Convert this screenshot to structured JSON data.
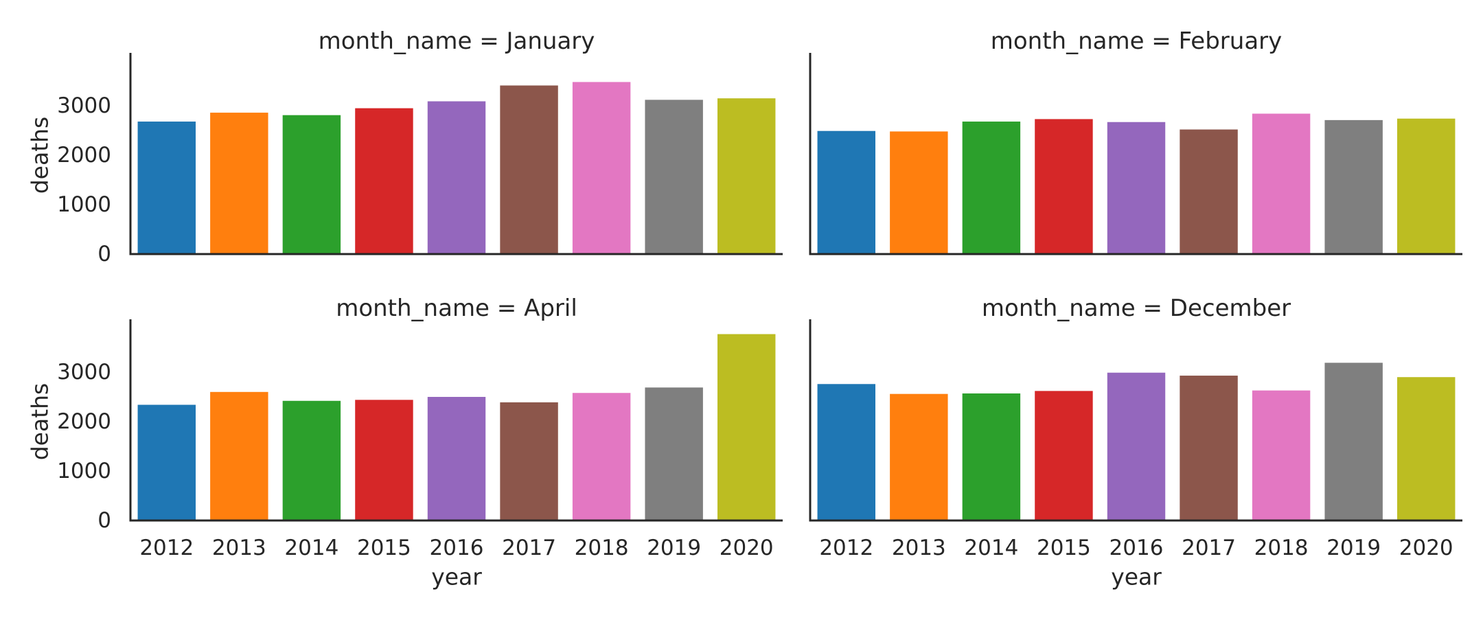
{
  "chart_data": {
    "type": "bar",
    "layout": "facet-grid 2x2",
    "xlabel": "year",
    "ylabel": "deaths",
    "ylim": [
      0,
      4000
    ],
    "yticks": [
      0,
      1000,
      2000,
      3000
    ],
    "categories": [
      "2012",
      "2013",
      "2014",
      "2015",
      "2016",
      "2017",
      "2018",
      "2019",
      "2020"
    ],
    "colors": [
      "#1f77b4",
      "#ff7f0e",
      "#2ca02c",
      "#d62728",
      "#9467bd",
      "#8c564b",
      "#e377c2",
      "#7f7f7f",
      "#bcbd22"
    ],
    "panels": [
      {
        "title": "month_name = January",
        "values": [
          2680,
          2860,
          2810,
          2950,
          3090,
          3410,
          3480,
          3120,
          3150
        ]
      },
      {
        "title": "month_name = February",
        "values": [
          2490,
          2480,
          2680,
          2730,
          2670,
          2520,
          2840,
          2710,
          2740
        ]
      },
      {
        "title": "month_name = April",
        "values": [
          2340,
          2600,
          2420,
          2440,
          2500,
          2390,
          2580,
          2690,
          3770
        ]
      },
      {
        "title": "month_name = December",
        "values": [
          2760,
          2560,
          2570,
          2620,
          2990,
          2930,
          2630,
          3190,
          2900
        ]
      }
    ]
  }
}
